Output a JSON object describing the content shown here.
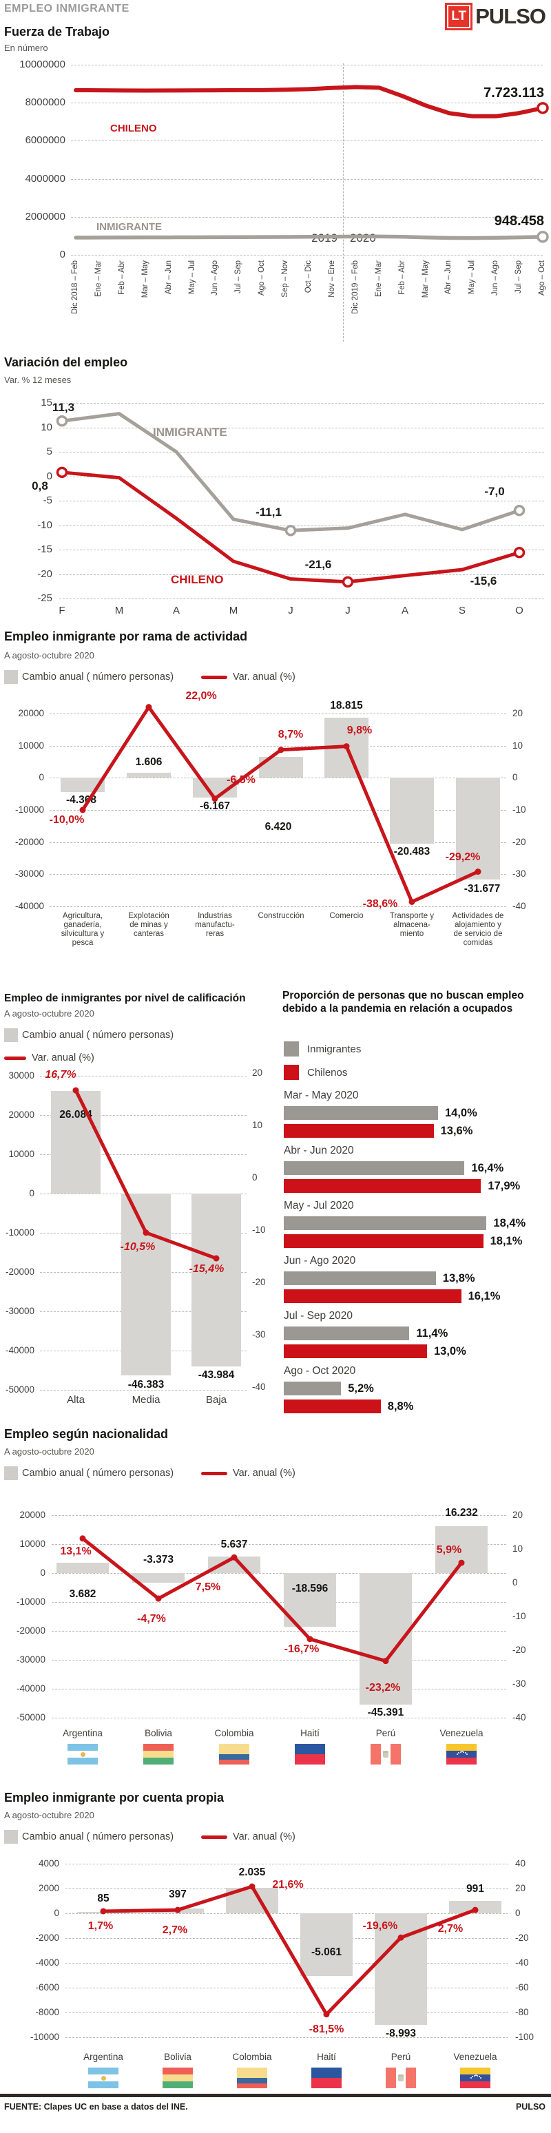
{
  "meta": {
    "kicker": "EMPLEO INMIGRANTE",
    "logo_lt": "LT",
    "logo_pulso": "PULSO",
    "footer_source": "FUENTE: Clapes UC en base a datos del INE.",
    "footer_brand": "PULSO"
  },
  "colors": {
    "red": "#c8151b",
    "logo_red": "#e6332a",
    "gray_line": "#a5a09a",
    "gray_text": "#9a948e",
    "bar_gray": "#d6d5d1",
    "legend_gray": "#cecdc9",
    "chilenos_bar_red": "#cd1118",
    "inmigrantes_bar_gray": "#9b9893",
    "text_dark": "#161614"
  },
  "chart_data": [
    {
      "id": "fuerza-de-trabajo",
      "type": "line",
      "title": "Fuerza de Trabajo",
      "subtitle": "En número",
      "y_ticks": [
        "10000000",
        "8000000",
        "6000000",
        "4000000",
        "2000000",
        "0"
      ],
      "ylim": [
        0,
        10000000
      ],
      "x_labels": [
        "Dic 2018 – Feb",
        "Ene – Mar",
        "Feb – Abr",
        "Mar – May",
        "Abr – Jun",
        "May – Jul",
        "Jun – Ago",
        "Jul – Sep",
        "Ago – Oct",
        "Sep – Nov",
        "Oct – Dic",
        "Nov – Ene",
        "Dic 2019 – Feb",
        "Ene – Mar",
        "Feb – Abr",
        "Mar – May",
        "Abr – Jun",
        "May – Jul",
        "Jun – Ago",
        "Jul – Sep",
        "Ago – Oct"
      ],
      "era_labels": [
        "2019",
        "2020"
      ],
      "divider_after_index": 11,
      "series": [
        {
          "name": "CHILENO",
          "color_key": "red",
          "end_label": "7.723.113",
          "values": [
            8660000,
            8655000,
            8645000,
            8640000,
            8645000,
            8650000,
            8655000,
            8665000,
            8665000,
            8685000,
            8720000,
            8780000,
            8825000,
            8790000,
            8350000,
            7850000,
            7450000,
            7290000,
            7290000,
            7460000,
            7723113
          ]
        },
        {
          "name": "INMIGRANTE",
          "color_key": "gray",
          "end_label": "948.458",
          "values": [
            905000,
            910000,
            914000,
            918000,
            921000,
            924000,
            928000,
            933000,
            938000,
            944000,
            950000,
            957000,
            963000,
            966000,
            950000,
            915000,
            888000,
            882000,
            895000,
            920000,
            948458
          ]
        }
      ]
    },
    {
      "id": "variacion-del-empleo",
      "type": "line",
      "title": "Variación del empleo",
      "subtitle": "Var. % 12 meses",
      "y_ticks": [
        "15",
        "10",
        "5",
        "0",
        "-5",
        "-10",
        "-15",
        "-20",
        "-25"
      ],
      "ylim": [
        -25,
        15
      ],
      "x_labels": [
        "F",
        "M",
        "A",
        "M",
        "J",
        "J",
        "A",
        "S",
        "O"
      ],
      "series": [
        {
          "name": "INMIGRANTE",
          "color_key": "gray",
          "values": [
            11.3,
            12.8,
            5,
            -8.8,
            -11.1,
            -10.6,
            -7.8,
            -10.9,
            -7
          ],
          "marker_indices": [
            0,
            4,
            8
          ]
        },
        {
          "name": "CHILENO",
          "color_key": "red",
          "values": [
            0.8,
            -0.3,
            -8.6,
            -17.4,
            -21,
            -21.6,
            -20.3,
            -19.1,
            -15.6
          ],
          "marker_indices": [
            0,
            5,
            8
          ]
        }
      ],
      "point_labels": [
        {
          "series": 0,
          "index": 0,
          "text": "11,3"
        },
        {
          "series": 1,
          "index": 0,
          "text": "0,8"
        },
        {
          "series": 0,
          "index": 4,
          "text": "-11,1"
        },
        {
          "series": 1,
          "index": 5,
          "text": "-21,6"
        },
        {
          "series": 0,
          "index": 8,
          "text": "-7,0"
        },
        {
          "series": 1,
          "index": 8,
          "text": "-15,6"
        }
      ]
    },
    {
      "id": "empleo-por-rama",
      "type": "bar",
      "title": "Empleo inmigrante por rama de actividad",
      "subtitle": "A agosto-octubre 2020",
      "legend": [
        "Cambio anual ( número personas)",
        "Var. anual (%)"
      ],
      "categories": [
        [
          "Agricultura,",
          "ganadería,",
          "silvicultura y",
          "pesca"
        ],
        [
          "Explotación",
          "de minas y",
          "canteras"
        ],
        [
          "Industrias",
          "manufactu-",
          "reras"
        ],
        [
          "Construcción"
        ],
        [
          "Comercio"
        ],
        [
          "Transporte y",
          "almacena-",
          "miento"
        ],
        [
          "Actividades de",
          "alojamiento y",
          "de servicio de",
          "comidas"
        ]
      ],
      "bar_values": [
        -4368,
        1606,
        -6167,
        6420,
        18815,
        -20483,
        -31677
      ],
      "bar_labels": [
        "-4.368",
        "1.606",
        "-6.167",
        "6.420",
        "18.815",
        "-20.483",
        "-31.677"
      ],
      "line_values": [
        -10.0,
        22.0,
        -6.5,
        8.7,
        9.8,
        -38.6,
        -29.2
      ],
      "line_labels": [
        "-10,0%",
        "22,0%",
        "-6,5%",
        "8,7%",
        "9,8%",
        "-38,6%",
        "-29,2%"
      ],
      "left_ticks": [
        "20000",
        "10000",
        "0",
        "-10000",
        "-20000",
        "-30000",
        "-40000"
      ],
      "right_ticks": [
        "20",
        "10",
        "0",
        "-10",
        "-20",
        "-30",
        "-40"
      ],
      "left_lim": [
        -40000,
        20000
      ]
    },
    {
      "id": "empleo-por-calificacion",
      "type": "bar",
      "title": "Empleo de inmigrantes por nivel de calificación",
      "subtitle": "A agosto-octubre 2020",
      "legend": [
        "Cambio anual ( número personas)",
        "Var. anual (%)"
      ],
      "categories": [
        "Alta",
        "Media",
        "Baja"
      ],
      "bar_values": [
        26084,
        -46383,
        -43984
      ],
      "bar_labels": [
        "26.084",
        "-46.383",
        "-43.984"
      ],
      "line_values": [
        16.7,
        -10.5,
        -15.4
      ],
      "line_labels": [
        "16,7%",
        "-10,5%",
        "-15,4%"
      ],
      "left_ticks": [
        "30000",
        "20000",
        "10000",
        "0",
        "-10000",
        "-20000",
        "-30000",
        "-40000",
        "-50000"
      ],
      "right_ticks": [
        "20",
        "10",
        "0",
        "-10",
        "-20",
        "-30",
        "-40"
      ],
      "left_lim": [
        -50000,
        30000
      ]
    },
    {
      "id": "no-buscan-empleo-pandemia",
      "type": "grouped-hbar",
      "title": "Proporción de personas que no buscan empleo debido a la pandemia en relación a ocupados",
      "legend": [
        "Inmigrantes",
        "Chilenos"
      ],
      "groups": [
        {
          "label": "Mar - May 2020",
          "values": [
            14.0,
            13.6
          ],
          "value_labels": [
            "14,0%",
            "13,6%"
          ]
        },
        {
          "label": "Abr - Jun 2020",
          "values": [
            16.4,
            17.9
          ],
          "value_labels": [
            "16,4%",
            "17,9%"
          ]
        },
        {
          "label": "May - Jul 2020",
          "values": [
            18.4,
            18.1
          ],
          "value_labels": [
            "18,4%",
            "18,1%"
          ]
        },
        {
          "label": "Jun - Ago 2020",
          "values": [
            13.8,
            16.1
          ],
          "value_labels": [
            "13,8%",
            "16,1%"
          ]
        },
        {
          "label": "Jul - Sep 2020",
          "values": [
            11.4,
            13.0
          ],
          "value_labels": [
            "11,4%",
            "13,0%"
          ]
        },
        {
          "label": "Ago - Oct 2020",
          "values": [
            5.2,
            8.8
          ],
          "value_labels": [
            "5,2%",
            "8,8%"
          ]
        }
      ]
    },
    {
      "id": "empleo-por-nacionalidad",
      "type": "bar",
      "title": "Empleo según nacionalidad",
      "subtitle": "A agosto-octubre 2020",
      "legend": [
        "Cambio anual ( número personas)",
        "Var. anual (%)"
      ],
      "categories": [
        "Argentina",
        "Bolivia",
        "Colombia",
        "Haití",
        "Perú",
        "Venezuela"
      ],
      "bar_values": [
        3682,
        -3373,
        5637,
        -18596,
        -45391,
        16232
      ],
      "bar_labels": [
        "3.682",
        "-3.373",
        "5.637",
        "-18.596",
        "-45.391",
        "16.232"
      ],
      "line_values": [
        13.1,
        -4.7,
        7.5,
        -16.7,
        -23.2,
        5.9
      ],
      "line_labels": [
        "13,1%",
        "-4,7%",
        "7,5%",
        "-16,7%",
        "-23,2%",
        "5,9%"
      ],
      "left_ticks": [
        "20000",
        "10000",
        "0",
        "-10000",
        "-20000",
        "-30000",
        "-40000",
        "-50000"
      ],
      "right_ticks": [
        "20",
        "10",
        "0",
        "-10",
        "-20",
        "-30",
        "-40"
      ],
      "left_lim": [
        -50000,
        20000
      ]
    },
    {
      "id": "empleo-cuenta-propia",
      "type": "bar",
      "title": "Empleo inmigrante por cuenta propia",
      "subtitle": "A agosto-octubre 2020",
      "legend": [
        "Cambio anual ( número personas)",
        "Var. anual (%)"
      ],
      "categories": [
        "Argentina",
        "Bolivia",
        "Colombia",
        "Haití",
        "Perú",
        "Venezuela"
      ],
      "bar_values": [
        85,
        397,
        2035,
        -5061,
        -8993,
        991
      ],
      "bar_labels": [
        "85",
        "397",
        "2.035",
        "-5.061",
        "-8.993",
        "991"
      ],
      "line_values": [
        1.7,
        2.7,
        21.6,
        -81.5,
        -19.6,
        2.7
      ],
      "line_labels": [
        "1,7%",
        "2,7%",
        "21,6%",
        "-81,5%",
        "-19,6%",
        "2,7%"
      ],
      "left_ticks": [
        "4000",
        "2000",
        "0",
        "-2000",
        "-4000",
        "-6000",
        "-8000",
        "-10000"
      ],
      "right_ticks": [
        "40",
        "20",
        "0",
        "-20",
        "-40",
        "-60",
        "-80",
        "-100"
      ],
      "left_lim": [
        -10000,
        4000
      ]
    }
  ],
  "flags": {
    "Argentina": {
      "orientation": "h",
      "stripes": [
        {
          "c": "#7cc3e6",
          "h": 10
        },
        {
          "c": "#ffffff",
          "h": 10
        },
        {
          "c": "#7cc3e6",
          "h": 10
        }
      ],
      "emblem": "sun"
    },
    "Bolivia": {
      "orientation": "h",
      "stripes": [
        {
          "c": "#ee6055",
          "h": 10
        },
        {
          "c": "#f7dc8d",
          "h": 10
        },
        {
          "c": "#52ae77",
          "h": 10
        }
      ],
      "emblem": null
    },
    "Colombia": {
      "orientation": "h",
      "stripes": [
        {
          "c": "#f7dc8d",
          "h": 15
        },
        {
          "c": "#39699f",
          "h": 7.5
        },
        {
          "c": "#ee6055",
          "h": 7.5
        }
      ],
      "emblem": null
    },
    "Haití": {
      "orientation": "h",
      "stripes": [
        {
          "c": "#2b57a0",
          "h": 15
        },
        {
          "c": "#ea3449",
          "h": 15
        }
      ],
      "emblem": null
    },
    "Perú": {
      "orientation": "v",
      "stripes": [
        {
          "c": "#f4746a",
          "h": 15
        },
        {
          "c": "#ffffff",
          "h": 14
        },
        {
          "c": "#f4746a",
          "h": 15
        }
      ],
      "emblem": "shield"
    },
    "Venezuela": {
      "orientation": "h",
      "stripes": [
        {
          "c": "#f6c62d",
          "h": 10
        },
        {
          "c": "#33509e",
          "h": 10
        },
        {
          "c": "#ea3449",
          "h": 10
        }
      ],
      "emblem": "stars"
    }
  }
}
